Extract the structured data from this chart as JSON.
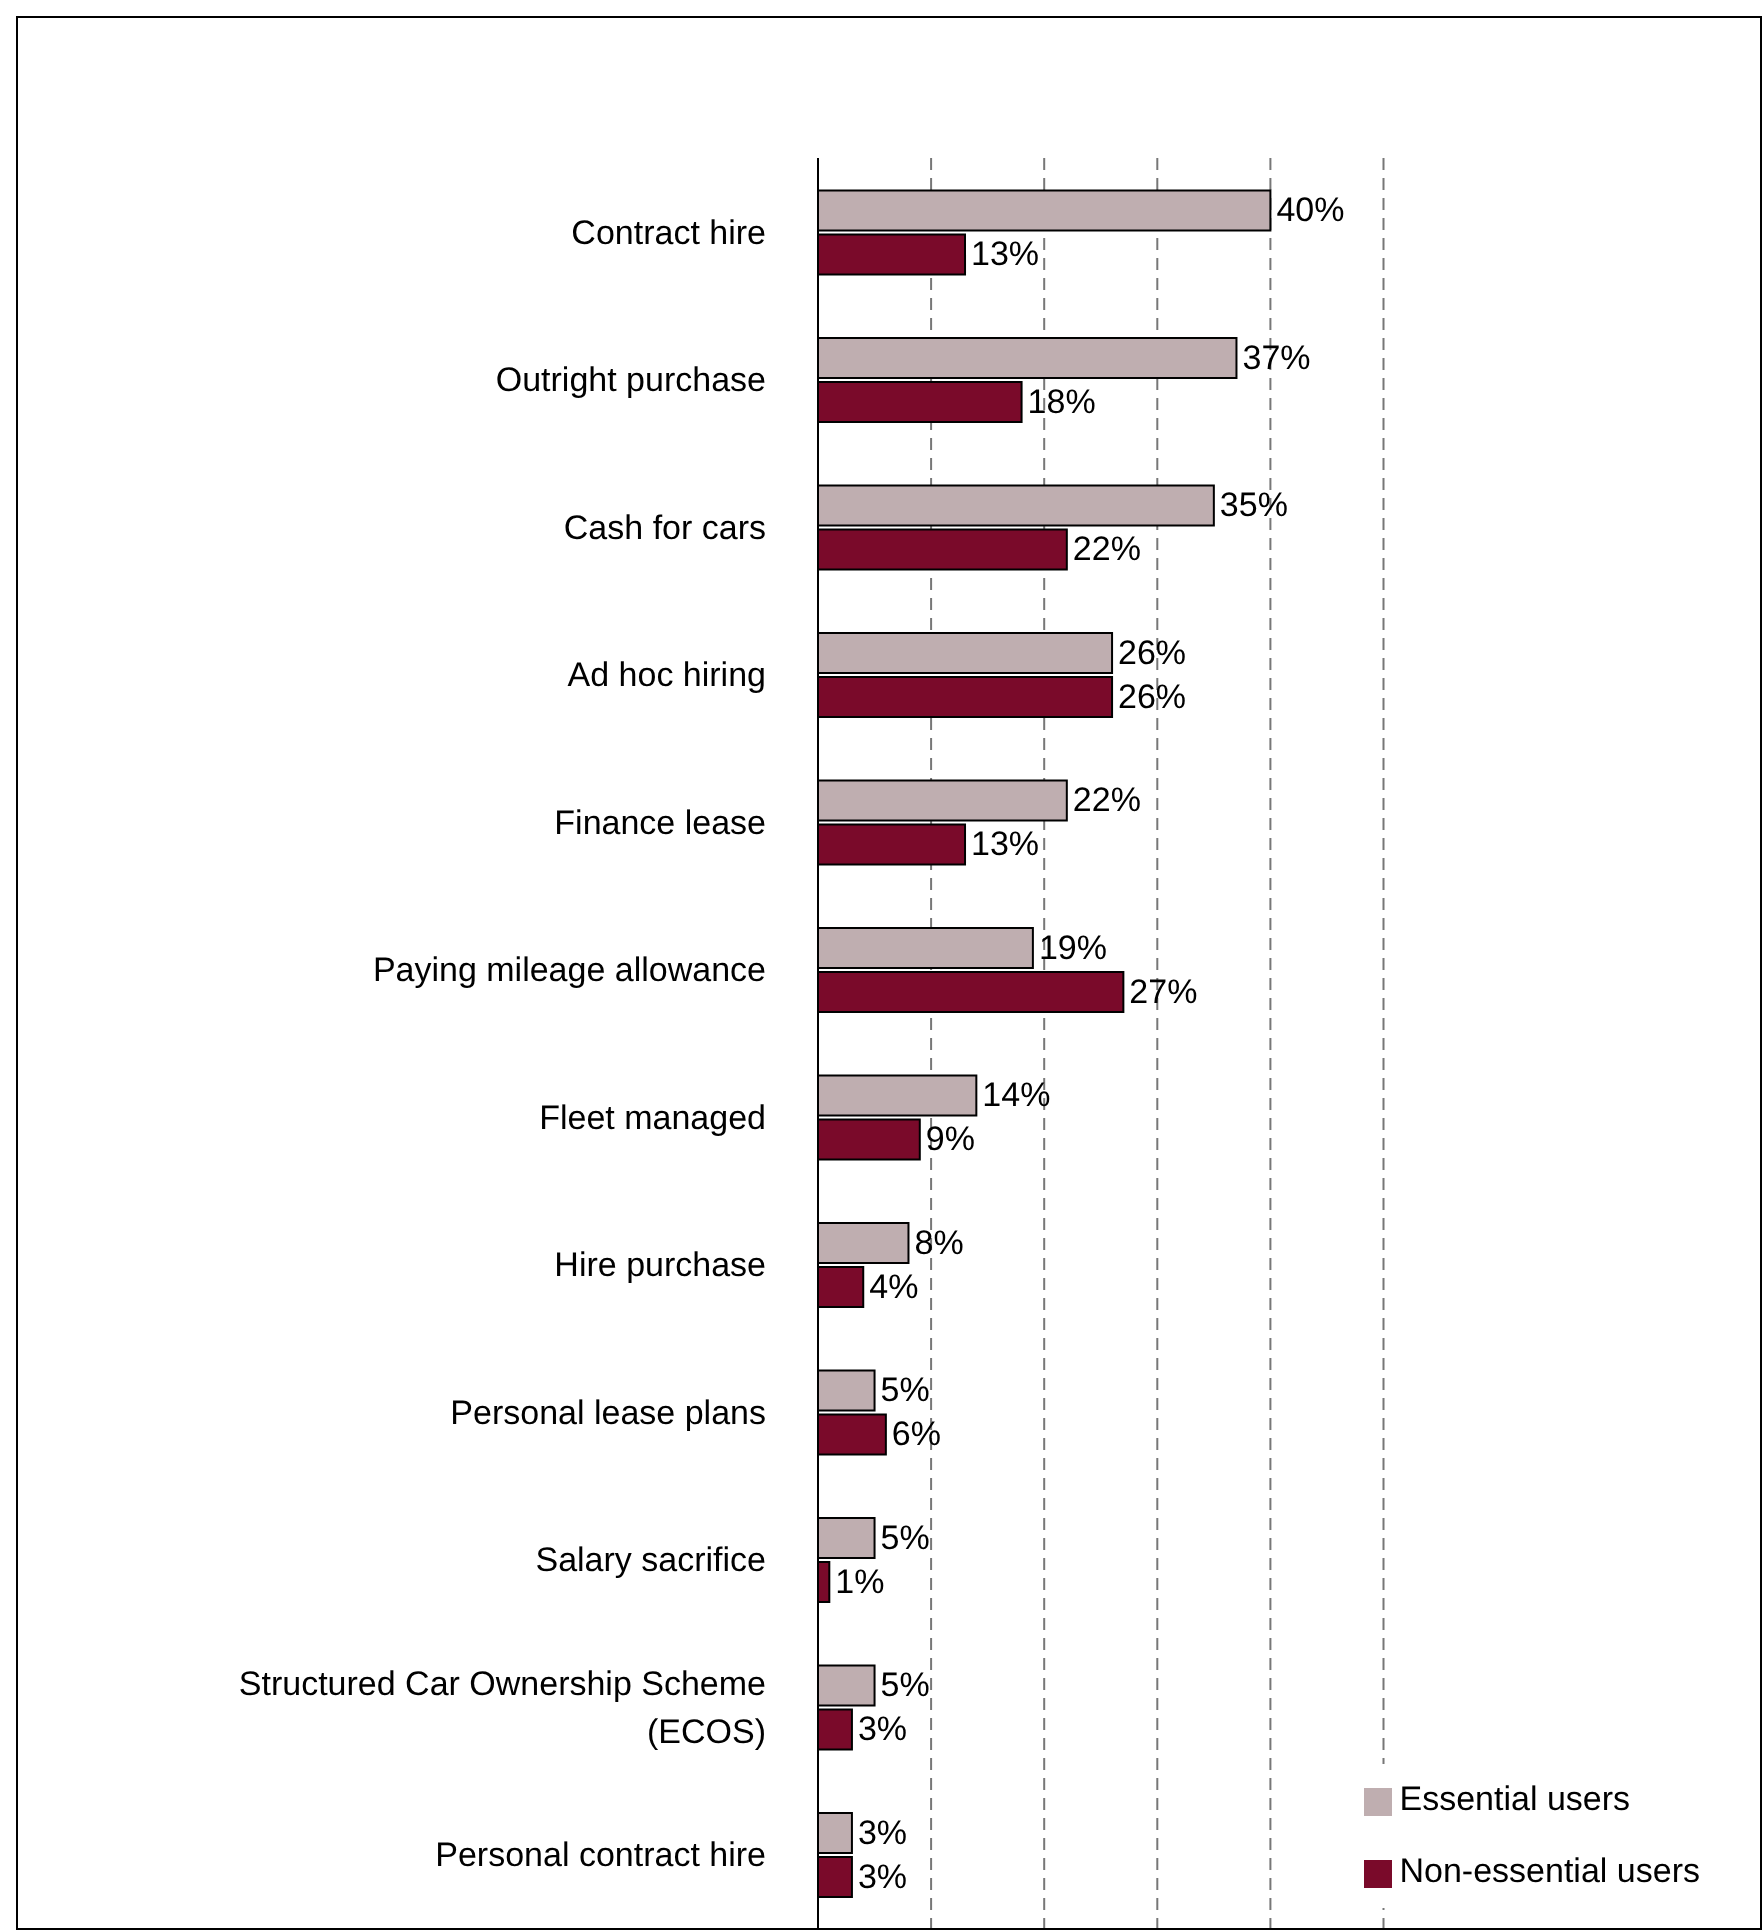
{
  "chart_data": {
    "type": "bar",
    "orientation": "horizontal",
    "categories": [
      "Contract hire",
      "Outright purchase",
      "Cash for cars",
      "Ad hoc hiring",
      "Finance lease",
      "Paying mileage allowance",
      "Fleet managed",
      "Hire purchase",
      "Personal lease plans",
      "Salary sacrifice",
      "Structured Car Ownership Scheme (ECOS)",
      "Personal contract hire"
    ],
    "series": [
      {
        "name": "Essential users",
        "color": "#bfaeb0",
        "values": [
          40,
          37,
          35,
          26,
          22,
          19,
          14,
          8,
          5,
          5,
          5,
          3
        ],
        "value_labels": [
          "40%",
          "37%",
          "35%",
          "26%",
          "22%",
          "19%",
          "14%",
          "8%",
          "5%",
          "5%",
          "5%",
          "3%"
        ]
      },
      {
        "name": "Non-essential users",
        "color": "#7a0a2a",
        "values": [
          13,
          18,
          22,
          26,
          13,
          27,
          9,
          4,
          6,
          1,
          3,
          3
        ],
        "value_labels": [
          "13%",
          "18%",
          "22%",
          "26%",
          "13%",
          "27%",
          "9%",
          "4%",
          "6%",
          "1%",
          "3%",
          "3%"
        ]
      }
    ],
    "xlim": [
      0,
      50
    ],
    "xticks": [
      {
        "value": 0,
        "label": null
      },
      {
        "value": 10,
        "label": null
      },
      {
        "value": 20,
        "label": null
      },
      {
        "value": 30,
        "label": null
      },
      {
        "value": 40,
        "label": null
      },
      {
        "value": 50,
        "label": null
      }
    ],
    "tick_labels": "y",
    "grid": "x",
    "legend": "bottom right"
  }
}
